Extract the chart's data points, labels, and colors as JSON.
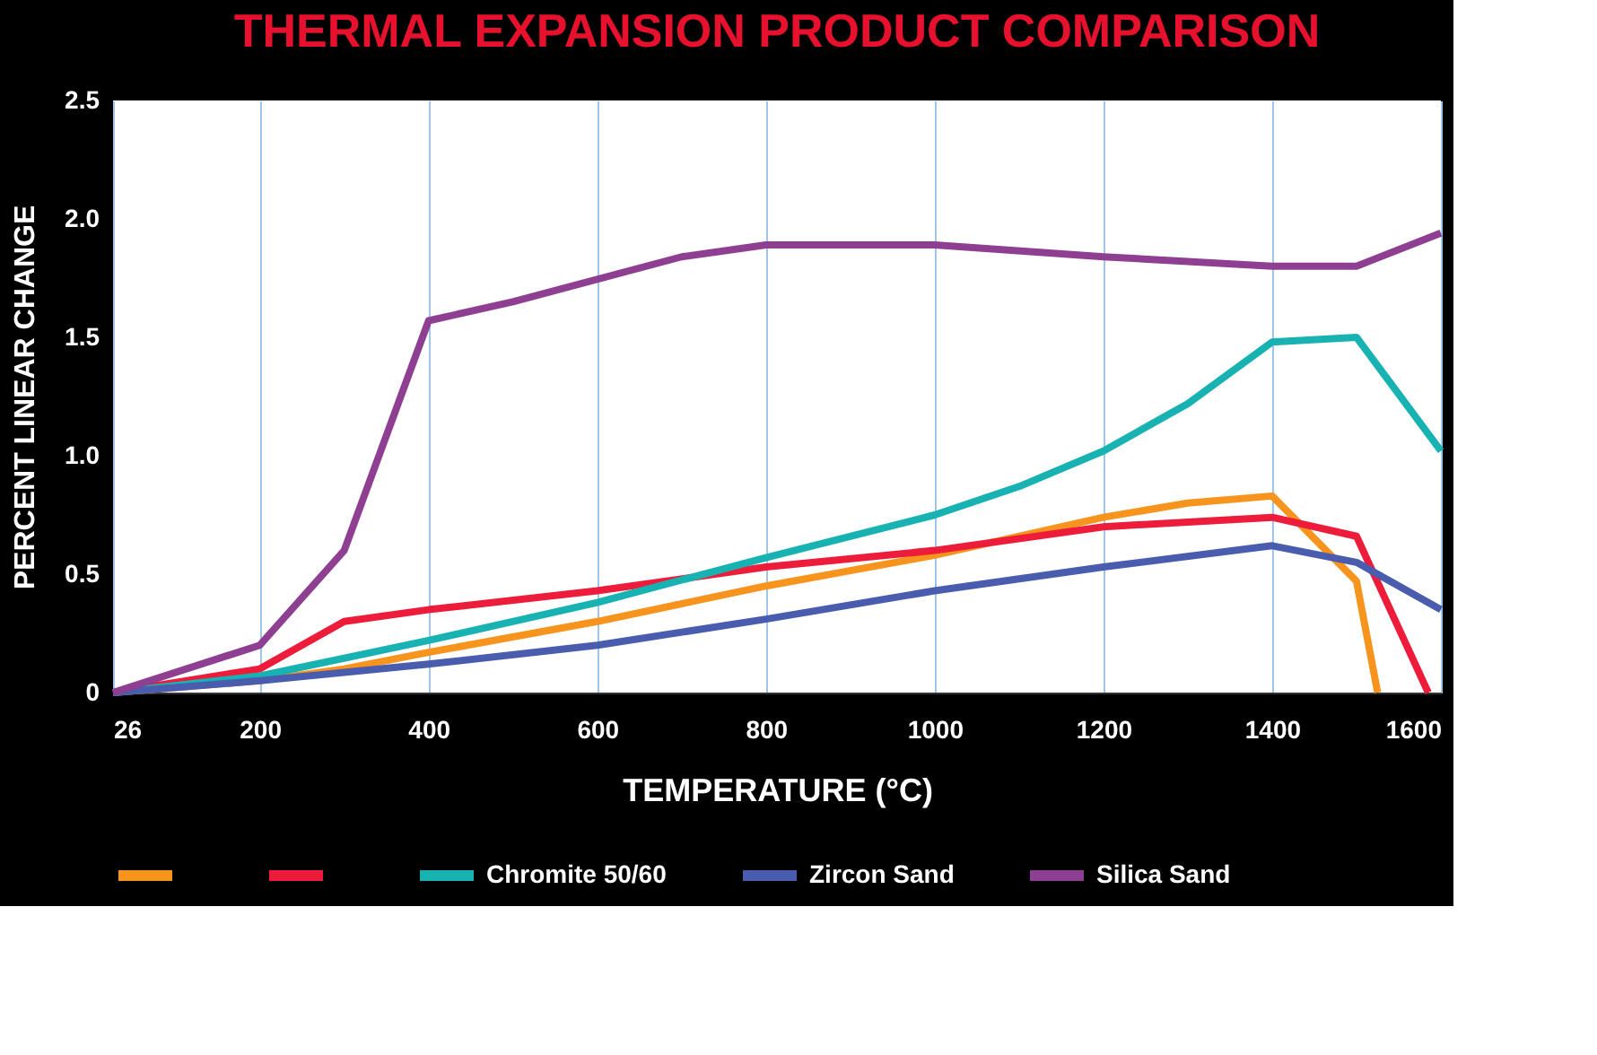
{
  "chart_data": {
    "type": "line",
    "title": "THERMAL EXPANSION PRODUCT COMPARISON",
    "xlabel": "TEMPERATURE (°C)",
    "ylabel": "PERCENT LINEAR CHANGE",
    "xlim": [
      26,
      1600
    ],
    "xticks": [
      26,
      200,
      400,
      600,
      800,
      1000,
      1200,
      1400,
      1600
    ],
    "ylim": [
      0,
      2.5
    ],
    "yticks": [
      0,
      {
        "value": 0.5,
        "label": "0.5"
      },
      {
        "value": 1,
        "label": "1.0"
      },
      {
        "value": 1.5,
        "label": "1.5"
      },
      {
        "value": 2,
        "label": "2.0"
      },
      {
        "value": 2.5,
        "label": "2.5"
      }
    ],
    "grid": "x",
    "legend": "bottom",
    "marker": "none",
    "line_style": "solid",
    "series": [
      {
        "color": "#f7941d",
        "x": [
          26,
          200,
          300,
          400,
          600,
          800,
          1000,
          1200,
          1300,
          1400,
          1500,
          1525
        ],
        "values": [
          0,
          0.05,
          0.1,
          0.17,
          0.3,
          0.45,
          0.58,
          0.74,
          0.8,
          0.83,
          0.47,
          0
        ]
      },
      {
        "color": "#ed1c3a",
        "x": [
          26,
          200,
          300,
          400,
          600,
          800,
          1000,
          1200,
          1400,
          1500,
          1585
        ],
        "values": [
          0,
          0.1,
          0.3,
          0.35,
          0.43,
          0.53,
          0.6,
          0.7,
          0.74,
          0.66,
          0
        ]
      },
      {
        "name": "Chromite 50/60",
        "color": "#19b2b2",
        "x": [
          26,
          200,
          400,
          600,
          800,
          1000,
          1100,
          1200,
          1300,
          1400,
          1500,
          1600
        ],
        "values": [
          0,
          0.07,
          0.22,
          0.38,
          0.57,
          0.75,
          0.87,
          1.02,
          1.22,
          1.48,
          1.5,
          1.02
        ]
      },
      {
        "name": "Zircon Sand",
        "color": "#4a5cae",
        "x": [
          26,
          200,
          400,
          600,
          800,
          1000,
          1200,
          1400,
          1500,
          1600
        ],
        "values": [
          0,
          0.05,
          0.12,
          0.2,
          0.31,
          0.43,
          0.53,
          0.62,
          0.55,
          0.35
        ]
      },
      {
        "name": "Silica Sand",
        "color": "#8e3f91",
        "x": [
          26,
          200,
          300,
          400,
          500,
          700,
          800,
          1000,
          1200,
          1400,
          1500,
          1600
        ],
        "values": [
          0,
          0.2,
          0.6,
          1.57,
          1.65,
          1.84,
          1.89,
          1.89,
          1.84,
          1.8,
          1.8,
          1.94
        ]
      }
    ]
  }
}
